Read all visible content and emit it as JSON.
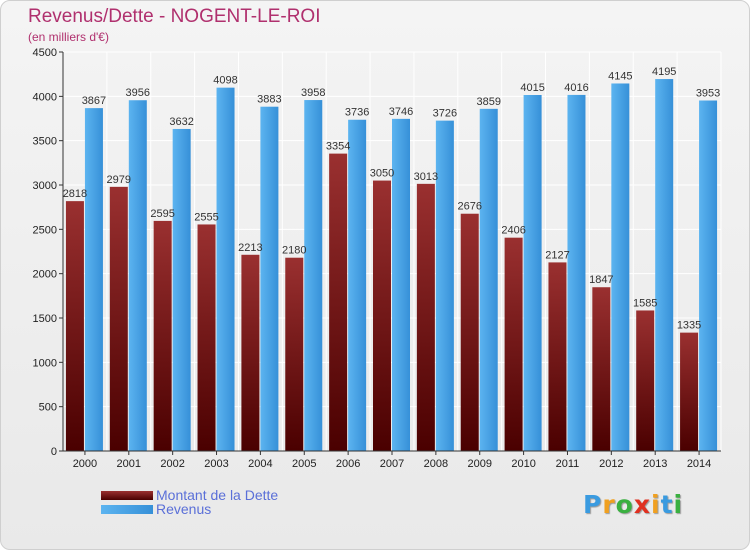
{
  "title": "Revenus/Dette - NOGENT-LE-ROI",
  "subtitle": "(en milliers d'€)",
  "logo": {
    "letters": [
      "P",
      "r",
      "o",
      "x",
      "i",
      "t",
      "i"
    ],
    "colors": [
      "#3a9be0",
      "#f0a020",
      "#3ab040",
      "#e03020",
      "#f0a020",
      "#3a9be0",
      "#3ab040"
    ]
  },
  "colors": {
    "dette": "#7a1010",
    "revenus": "#3a9be0",
    "title": "#b0306e"
  },
  "chart_data": {
    "type": "bar",
    "categories": [
      "2000",
      "2001",
      "2002",
      "2003",
      "2004",
      "2005",
      "2006",
      "2007",
      "2008",
      "2009",
      "2010",
      "2011",
      "2012",
      "2013",
      "2014"
    ],
    "series": [
      {
        "name": "Montant de la Dette",
        "values": [
          2818,
          2979,
          2595,
          2555,
          2213,
          2180,
          3354,
          3050,
          3013,
          2676,
          2406,
          2127,
          1847,
          1585,
          1335
        ],
        "labels": [
          "2818",
          "2979",
          "2595",
          "2555",
          "2213",
          "2180",
          "3354",
          "3050",
          "3013",
          "2676",
          "2406",
          "2127",
          "1847",
          "1585",
          "1335"
        ]
      },
      {
        "name": "Revenus",
        "values": [
          3867,
          3956,
          3632,
          4098,
          3883,
          3958,
          3736,
          3746,
          3726,
          3859,
          4015,
          4016,
          4145,
          4195,
          3953
        ],
        "labels": [
          "3867",
          "3956",
          "3632",
          "4098",
          "3883",
          "3958",
          "3736",
          "3746",
          "3726",
          "3859",
          "4015",
          "4016",
          "4145",
          "4195",
          "3953"
        ]
      }
    ],
    "yticks": [
      "0",
      "500",
      "1000",
      "1500",
      "2000",
      "2500",
      "3000",
      "3500",
      "4000",
      "4500"
    ],
    "ylim": [
      0,
      4500
    ],
    "grid": true,
    "legend": "bottom-left"
  }
}
